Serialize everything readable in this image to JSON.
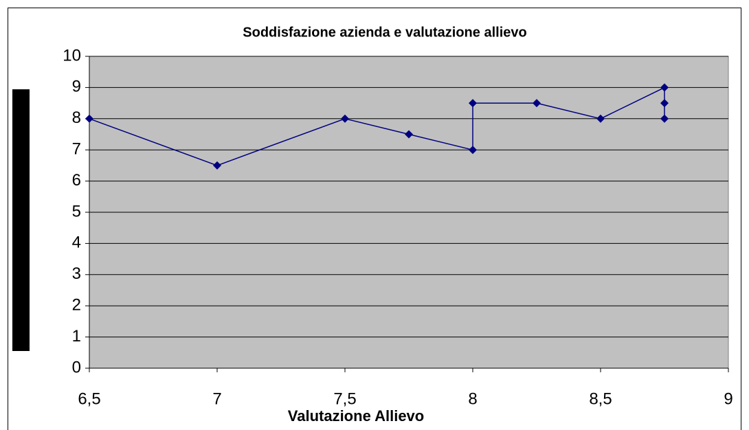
{
  "chart_data": {
    "type": "line",
    "title": "Soddisfazione azienda e valutazione allievo",
    "x_label": "Valutazione Allievo",
    "series": [
      {
        "color": "#000080",
        "x": [
          6.5,
          7,
          7.5,
          7.75,
          8,
          8,
          8.25,
          8.5,
          8.75,
          8.75,
          8.75
        ],
        "values": [
          8,
          6.5,
          8,
          7.5,
          7,
          8.5,
          8.5,
          8,
          9,
          8.5,
          8
        ]
      }
    ],
    "xlim": [
      6.5,
      9
    ],
    "xticks": [
      {
        "value": 6.5,
        "label": "6,5"
      },
      7,
      {
        "value": 7.5,
        "label": "7,5"
      },
      8,
      {
        "value": 8.5,
        "label": "8,5"
      },
      9
    ],
    "ylim": [
      0,
      10
    ],
    "yticks": [
      0,
      1,
      2,
      3,
      4,
      5,
      6,
      7,
      8,
      9,
      10
    ],
    "grid": true
  }
}
